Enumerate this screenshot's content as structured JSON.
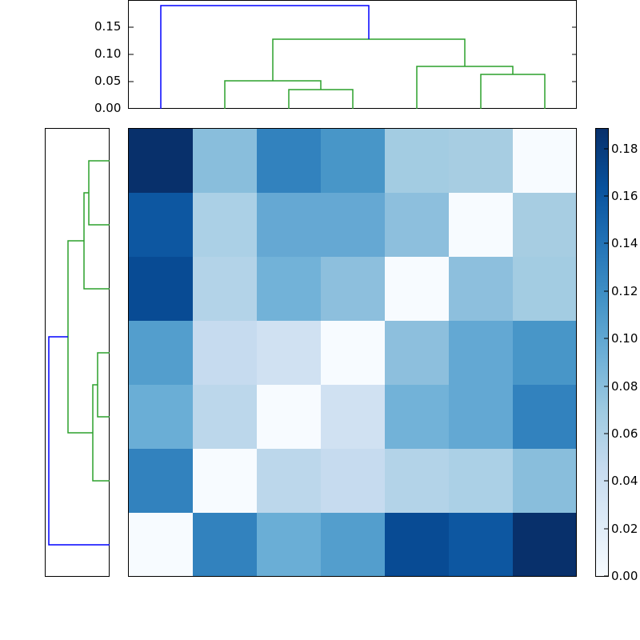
{
  "chart_data": {
    "type": "heatmap",
    "title": "",
    "xlabel": "",
    "ylabel": "",
    "colormap": "Blues",
    "matrix": [
      [
        0.19,
        0.08,
        0.13,
        0.12,
        0.07,
        0.07,
        0.0
      ],
      [
        0.16,
        0.06,
        0.1,
        0.1,
        0.08,
        0.0,
        0.07
      ],
      [
        0.17,
        0.06,
        0.09,
        0.08,
        0.0,
        0.08,
        0.07
      ],
      [
        0.11,
        0.04,
        0.03,
        0.0,
        0.08,
        0.1,
        0.12
      ],
      [
        0.09,
        0.05,
        0.0,
        0.03,
        0.09,
        0.1,
        0.13
      ],
      [
        0.13,
        0.0,
        0.05,
        0.04,
        0.06,
        0.06,
        0.08
      ],
      [
        0.0,
        0.13,
        0.09,
        0.11,
        0.17,
        0.16,
        0.19
      ]
    ],
    "cell_colors": [
      [
        "#08306b",
        "#89bedc",
        "#3282be",
        "#4896c8",
        "#a3cce2",
        "#a7cde2",
        "#f7fbff"
      ],
      [
        "#0d57a1",
        "#abd0e6",
        "#65a8d3",
        "#65a8d3",
        "#8dbfdd",
        "#f7fbff",
        "#a7cde2"
      ],
      [
        "#084b94",
        "#b3d3e8",
        "#72b2d8",
        "#8dbfdd",
        "#f7fbff",
        "#8dbfdd",
        "#a3cce2"
      ],
      [
        "#539ecd",
        "#c6dbef",
        "#d0e1f2",
        "#f7fbff",
        "#8dbfdd",
        "#63a8d3",
        "#4896c8"
      ],
      [
        "#6aaed6",
        "#bcd7eb",
        "#f7fbff",
        "#d0e1f2",
        "#72b2d8",
        "#63a8d3",
        "#3282be"
      ],
      [
        "#3282be",
        "#f7fbff",
        "#bcd7eb",
        "#c6dbef",
        "#b3d3e8",
        "#abd0e6",
        "#89bedc"
      ],
      [
        "#f7fbff",
        "#3282be",
        "#6aaed6",
        "#539ecd",
        "#084b94",
        "#0d57a1",
        "#08306b"
      ]
    ],
    "colorbar": {
      "range": [
        0.0,
        0.19
      ],
      "ticks": [
        "0.00",
        "0.02",
        "0.04",
        "0.06",
        "0.08",
        "0.10",
        "0.12",
        "0.14",
        "0.16",
        "0.18"
      ]
    },
    "top_dendrogram": {
      "yticks": [
        "0.00",
        "0.05",
        "0.10",
        "0.15"
      ],
      "ylim": [
        0.0,
        0.2
      ],
      "leaf_positions": [
        0,
        1,
        2,
        3,
        4,
        5,
        6
      ],
      "links": [
        {
          "left": 2,
          "right": 3,
          "height": 0.035,
          "color": "#2ca02c"
        },
        {
          "left": 1,
          "right": "2-3",
          "height": 0.052,
          "color": "#2ca02c"
        },
        {
          "left": 5,
          "right": 6,
          "height": 0.064,
          "color": "#2ca02c"
        },
        {
          "left": 4,
          "right": "5-6",
          "height": 0.078,
          "color": "#2ca02c"
        },
        {
          "left": "1-3",
          "right": "4-6",
          "height": 0.128,
          "color": "#2ca02c"
        },
        {
          "left": 0,
          "right": "1-6",
          "height": 0.19,
          "color": "#0000ff"
        }
      ]
    },
    "left_dendrogram": {
      "orientation": "left",
      "links": [
        {
          "top": 0,
          "bottom": 1,
          "height": 0.04,
          "color": "#2ca02c"
        },
        {
          "top": "0-1",
          "bottom": 2,
          "height": 0.048,
          "color": "#2ca02c"
        },
        {
          "top": 3,
          "bottom": 4,
          "height": 0.022,
          "color": "#2ca02c"
        },
        {
          "top": "3-4",
          "bottom": 5,
          "height": 0.031,
          "color": "#2ca02c"
        },
        {
          "top": "0-2",
          "bottom": "3-5",
          "height": 0.078,
          "color": "#2ca02c"
        },
        {
          "top": "0-5",
          "bottom": 6,
          "height": 0.11,
          "color": "#0000ff"
        }
      ]
    }
  },
  "labels": {
    "top_yticks": [
      "0.15",
      "0.10",
      "0.05",
      "0.00"
    ],
    "colorbar_ticks": [
      "0.18",
      "0.16",
      "0.14",
      "0.12",
      "0.10",
      "0.08",
      "0.06",
      "0.04",
      "0.02",
      "0.00"
    ]
  }
}
